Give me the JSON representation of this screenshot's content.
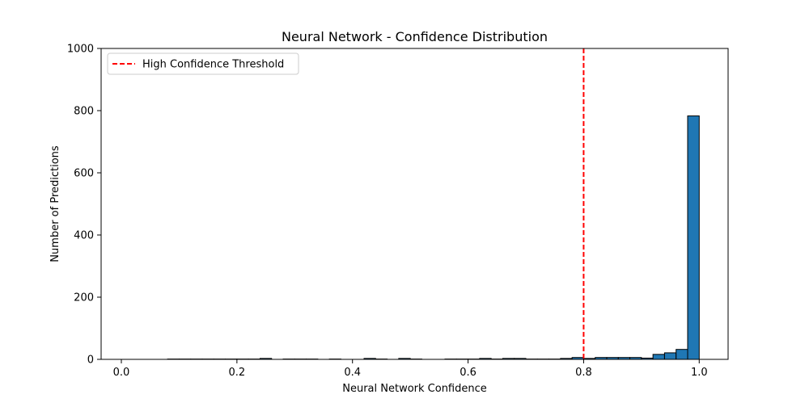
{
  "chart_data": {
    "type": "bar",
    "title": "Neural Network - Confidence Distribution",
    "xlabel": "Neural Network Confidence",
    "ylabel": "Number of Predictions",
    "xlim": [
      -0.035,
      1.05
    ],
    "ylim": [
      0,
      1000
    ],
    "xticks": [
      0.0,
      0.2,
      0.4,
      0.6,
      0.8,
      1.0
    ],
    "xtick_labels": [
      "0.0",
      "0.2",
      "0.4",
      "0.6",
      "0.8",
      "1.0"
    ],
    "yticks": [
      0,
      200,
      400,
      600,
      800,
      1000
    ],
    "ytick_labels": [
      "0",
      "200",
      "400",
      "600",
      "800",
      "1000"
    ],
    "grid": false,
    "legend": {
      "placement": "top-left",
      "entries": [
        "High Confidence Threshold"
      ]
    },
    "bin_width": 0.02,
    "bin_starts": [
      0.0,
      0.02,
      0.04,
      0.06,
      0.08,
      0.1,
      0.12,
      0.14,
      0.16,
      0.18,
      0.2,
      0.22,
      0.24,
      0.26,
      0.28,
      0.3,
      0.32,
      0.34,
      0.36,
      0.38,
      0.4,
      0.42,
      0.44,
      0.46,
      0.48,
      0.5,
      0.52,
      0.54,
      0.56,
      0.58,
      0.6,
      0.62,
      0.64,
      0.66,
      0.68,
      0.7,
      0.72,
      0.74,
      0.76,
      0.78,
      0.8,
      0.82,
      0.84,
      0.86,
      0.88,
      0.9,
      0.92,
      0.94,
      0.96,
      0.98
    ],
    "values": [
      0,
      0,
      0,
      0,
      1,
      1,
      1,
      1,
      1,
      1,
      1,
      1,
      3,
      0,
      1,
      1,
      1,
      0,
      1,
      0,
      0,
      3,
      1,
      0,
      3,
      1,
      0,
      0,
      1,
      1,
      1,
      3,
      1,
      3,
      3,
      1,
      1,
      1,
      3,
      6,
      3,
      6,
      6,
      6,
      6,
      4,
      16,
      21,
      32,
      783
    ],
    "bar_color": "#1f77b4",
    "bar_edge_color": "#000000",
    "threshold": {
      "x": 0.8,
      "label": "High Confidence Threshold",
      "color": "#ff0000",
      "style": "dashed"
    }
  }
}
